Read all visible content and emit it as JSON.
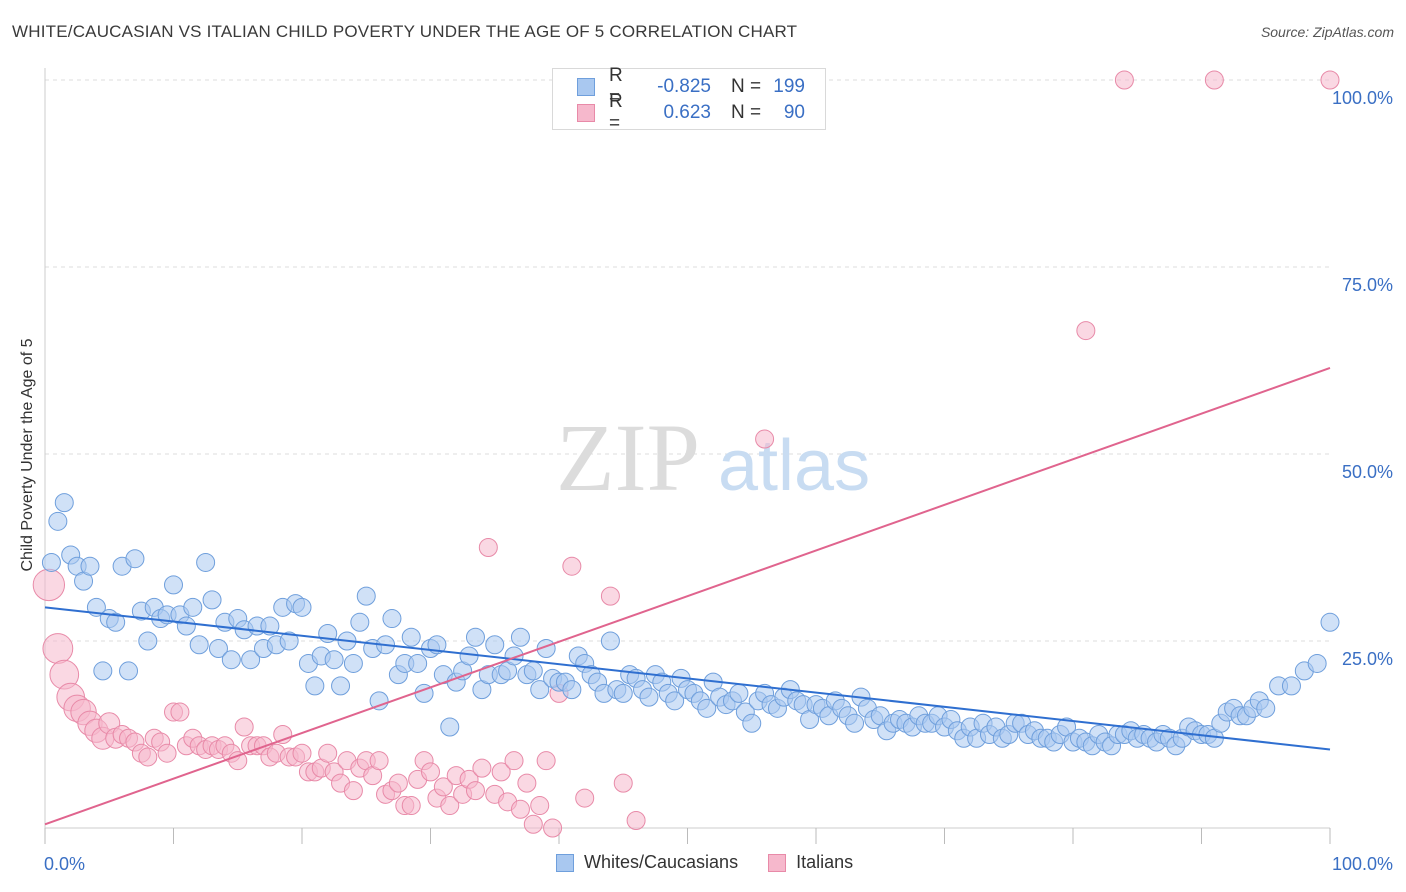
{
  "header": {
    "title": "WHITE/CAUCASIAN VS ITALIAN CHILD POVERTY UNDER THE AGE OF 5 CORRELATION CHART",
    "source": "Source: ZipAtlas.com"
  },
  "legend": {
    "rows": [
      {
        "r_label": "R =",
        "r_value": "-0.825",
        "n_label": "N =",
        "n_value": "199"
      },
      {
        "r_label": "R =",
        "r_value": "0.623",
        "n_label": "N =",
        "n_value": "90"
      }
    ]
  },
  "watermark": {
    "zip": "ZIP",
    "atlas": "atlas"
  },
  "colors": {
    "blue_fill": "#a9c8f0",
    "blue_stroke": "#6f9fdc",
    "blue_line": "#2f6fd0",
    "pink_fill": "#f6b8cc",
    "pink_stroke": "#e88aa8",
    "pink_line": "#e0648e",
    "axis_label": "#3a6fc4",
    "grid": "#dddddd"
  },
  "chart_data": {
    "type": "scatter",
    "title": "WHITE/CAUCASIAN VS ITALIAN CHILD POVERTY UNDER THE AGE OF 5 CORRELATION CHART",
    "xlabel": "",
    "ylabel": "Child Poverty Under the Age of 5",
    "xlim": [
      0,
      100
    ],
    "ylim": [
      0,
      100
    ],
    "x_tick_labels": [
      "0.0%",
      "100.0%"
    ],
    "y_tick_labels": [
      "25.0%",
      "50.0%",
      "75.0%",
      "100.0%"
    ],
    "y_ticks": [
      25,
      50,
      75,
      100
    ],
    "grid": true,
    "series": [
      {
        "name": "Whites/Caucasians",
        "r": -0.825,
        "n": 199,
        "trend": {
          "x": [
            0,
            100
          ],
          "y": [
            29.5,
            10.5
          ]
        },
        "points": [
          [
            0.5,
            35.5
          ],
          [
            1,
            41
          ],
          [
            1.5,
            43.5
          ],
          [
            2,
            36.5
          ],
          [
            2.5,
            35
          ],
          [
            3,
            33
          ],
          [
            3.5,
            35
          ],
          [
            4,
            29.5
          ],
          [
            4.5,
            21
          ],
          [
            5,
            28
          ],
          [
            5.5,
            27.5
          ],
          [
            6,
            35
          ],
          [
            6.5,
            21
          ],
          [
            7,
            36
          ],
          [
            7.5,
            29
          ],
          [
            8,
            25
          ],
          [
            8.5,
            29.5
          ],
          [
            9,
            28
          ],
          [
            9.5,
            28.5
          ],
          [
            10,
            32.5
          ],
          [
            10.5,
            28.5
          ],
          [
            11,
            27
          ],
          [
            11.5,
            29.5
          ],
          [
            12,
            24.5
          ],
          [
            12.5,
            35.5
          ],
          [
            13,
            30.5
          ],
          [
            13.5,
            24
          ],
          [
            14,
            27.5
          ],
          [
            14.5,
            22.5
          ],
          [
            15,
            28
          ],
          [
            15.5,
            26.5
          ],
          [
            16,
            22.5
          ],
          [
            16.5,
            27
          ],
          [
            17,
            24
          ],
          [
            17.5,
            27
          ],
          [
            18,
            24.5
          ],
          [
            18.5,
            29.5
          ],
          [
            19,
            25
          ],
          [
            19.5,
            30
          ],
          [
            20,
            29.5
          ],
          [
            20.5,
            22
          ],
          [
            21,
            19
          ],
          [
            21.5,
            23
          ],
          [
            22,
            26
          ],
          [
            22.5,
            22.5
          ],
          [
            23,
            19
          ],
          [
            23.5,
            25
          ],
          [
            24,
            22
          ],
          [
            24.5,
            27.5
          ],
          [
            25,
            31
          ],
          [
            25.5,
            24
          ],
          [
            26,
            17
          ],
          [
            26.5,
            24.5
          ],
          [
            27,
            28
          ],
          [
            27.5,
            20.5
          ],
          [
            28,
            22
          ],
          [
            28.5,
            25.5
          ],
          [
            29,
            22
          ],
          [
            29.5,
            18
          ],
          [
            30,
            24
          ],
          [
            30.5,
            24.5
          ],
          [
            31,
            20.5
          ],
          [
            31.5,
            13.5
          ],
          [
            32,
            19.5
          ],
          [
            32.5,
            21
          ],
          [
            33,
            23
          ],
          [
            33.5,
            25.5
          ],
          [
            34,
            18.5
          ],
          [
            34.5,
            20.5
          ],
          [
            35,
            24.5
          ],
          [
            35.5,
            20.5
          ],
          [
            36,
            21
          ],
          [
            36.5,
            23
          ],
          [
            37,
            25.5
          ],
          [
            37.5,
            20.5
          ],
          [
            38,
            21
          ],
          [
            38.5,
            18.5
          ],
          [
            39,
            24
          ],
          [
            39.5,
            20
          ],
          [
            40,
            19.5
          ],
          [
            40.5,
            19.5
          ],
          [
            41,
            18.5
          ],
          [
            41.5,
            23
          ],
          [
            42,
            22
          ],
          [
            42.5,
            20.5
          ],
          [
            43,
            19.5
          ],
          [
            43.5,
            18
          ],
          [
            44,
            25
          ],
          [
            44.5,
            18.5
          ],
          [
            45,
            18
          ],
          [
            45.5,
            20.5
          ],
          [
            46,
            20
          ],
          [
            46.5,
            18.5
          ],
          [
            47,
            17.5
          ],
          [
            47.5,
            20.5
          ],
          [
            48,
            19.5
          ],
          [
            48.5,
            18
          ],
          [
            49,
            17
          ],
          [
            49.5,
            20
          ],
          [
            50,
            18.5
          ],
          [
            50.5,
            18
          ],
          [
            51,
            17
          ],
          [
            51.5,
            16
          ],
          [
            52,
            19.5
          ],
          [
            52.5,
            17.5
          ],
          [
            53,
            16.5
          ],
          [
            53.5,
            17
          ],
          [
            54,
            18
          ],
          [
            54.5,
            15.5
          ],
          [
            55,
            14
          ],
          [
            55.5,
            17
          ],
          [
            56,
            18
          ],
          [
            56.5,
            16.5
          ],
          [
            57,
            16
          ],
          [
            57.5,
            17.5
          ],
          [
            58,
            18.5
          ],
          [
            58.5,
            17
          ],
          [
            59,
            16.5
          ],
          [
            59.5,
            14.5
          ],
          [
            60,
            16.5
          ],
          [
            60.5,
            16
          ],
          [
            61,
            15
          ],
          [
            61.5,
            17
          ],
          [
            62,
            16
          ],
          [
            62.5,
            15
          ],
          [
            63,
            14
          ],
          [
            63.5,
            17.5
          ],
          [
            64,
            16
          ],
          [
            64.5,
            14.5
          ],
          [
            65,
            15
          ],
          [
            65.5,
            13
          ],
          [
            66,
            14
          ],
          [
            66.5,
            14.5
          ],
          [
            67,
            14
          ],
          [
            67.5,
            13.5
          ],
          [
            68,
            15
          ],
          [
            68.5,
            14
          ],
          [
            69,
            14
          ],
          [
            69.5,
            15
          ],
          [
            70,
            13.5
          ],
          [
            70.5,
            14.5
          ],
          [
            71,
            13
          ],
          [
            71.5,
            12
          ],
          [
            72,
            13.5
          ],
          [
            72.5,
            12
          ],
          [
            73,
            14
          ],
          [
            73.5,
            12.5
          ],
          [
            74,
            13.5
          ],
          [
            74.5,
            12
          ],
          [
            75,
            12.5
          ],
          [
            75.5,
            14
          ],
          [
            76,
            14
          ],
          [
            76.5,
            12.5
          ],
          [
            77,
            13
          ],
          [
            77.5,
            12
          ],
          [
            78,
            12
          ],
          [
            78.5,
            11.5
          ],
          [
            79,
            12.5
          ],
          [
            79.5,
            13.5
          ],
          [
            80,
            11.5
          ],
          [
            80.5,
            12
          ],
          [
            81,
            11.5
          ],
          [
            81.5,
            11
          ],
          [
            82,
            12.5
          ],
          [
            82.5,
            11.5
          ],
          [
            83,
            11
          ],
          [
            83.5,
            12.5
          ],
          [
            84,
            12.5
          ],
          [
            84.5,
            13
          ],
          [
            85,
            12
          ],
          [
            85.5,
            12.5
          ],
          [
            86,
            12
          ],
          [
            86.5,
            11.5
          ],
          [
            87,
            12.5
          ],
          [
            87.5,
            12
          ],
          [
            88,
            11
          ],
          [
            88.5,
            12
          ],
          [
            89,
            13.5
          ],
          [
            89.5,
            13
          ],
          [
            90,
            12.5
          ],
          [
            90.5,
            12.5
          ],
          [
            91,
            12
          ],
          [
            91.5,
            14
          ],
          [
            92,
            15.5
          ],
          [
            92.5,
            16
          ],
          [
            93,
            15
          ],
          [
            93.5,
            15
          ],
          [
            94,
            16
          ],
          [
            94.5,
            17
          ],
          [
            95,
            16
          ],
          [
            96,
            19
          ],
          [
            97,
            19
          ],
          [
            98,
            21
          ],
          [
            99,
            22
          ],
          [
            100,
            27.5
          ]
        ]
      },
      {
        "name": "Italians",
        "r": 0.623,
        "n": 90,
        "trend": {
          "x": [
            0,
            100
          ],
          "y": [
            0.5,
            61.5
          ]
        },
        "points": [
          [
            0.3,
            32.5
          ],
          [
            1,
            24
          ],
          [
            1.5,
            20.5
          ],
          [
            2,
            17.5
          ],
          [
            2.5,
            16
          ],
          [
            3,
            15.5
          ],
          [
            3.5,
            14
          ],
          [
            4,
            13
          ],
          [
            4.5,
            12
          ],
          [
            5,
            14
          ],
          [
            5.5,
            12
          ],
          [
            6,
            12.5
          ],
          [
            6.5,
            12
          ],
          [
            7,
            11.5
          ],
          [
            7.5,
            10
          ],
          [
            8,
            9.5
          ],
          [
            8.5,
            12
          ],
          [
            9,
            11.5
          ],
          [
            9.5,
            10
          ],
          [
            10,
            15.5
          ],
          [
            10.5,
            15.5
          ],
          [
            11,
            11
          ],
          [
            11.5,
            12
          ],
          [
            12,
            11
          ],
          [
            12.5,
            10.5
          ],
          [
            13,
            11
          ],
          [
            13.5,
            10.5
          ],
          [
            14,
            11
          ],
          [
            14.5,
            10
          ],
          [
            15,
            9
          ],
          [
            15.5,
            13.5
          ],
          [
            16,
            11
          ],
          [
            16.5,
            11
          ],
          [
            17,
            11
          ],
          [
            17.5,
            9.5
          ],
          [
            18,
            10
          ],
          [
            18.5,
            12.5
          ],
          [
            19,
            9.5
          ],
          [
            19.5,
            9.5
          ],
          [
            20,
            10
          ],
          [
            20.5,
            7.5
          ],
          [
            21,
            7.5
          ],
          [
            21.5,
            8
          ],
          [
            22,
            10
          ],
          [
            22.5,
            7.5
          ],
          [
            23,
            6
          ],
          [
            23.5,
            9
          ],
          [
            24,
            5
          ],
          [
            24.5,
            8
          ],
          [
            25,
            9
          ],
          [
            25.5,
            7
          ],
          [
            26,
            9
          ],
          [
            26.5,
            4.5
          ],
          [
            27,
            5
          ],
          [
            27.5,
            6
          ],
          [
            28,
            3
          ],
          [
            28.5,
            3
          ],
          [
            29,
            6.5
          ],
          [
            29.5,
            9
          ],
          [
            30,
            7.5
          ],
          [
            30.5,
            4
          ],
          [
            31,
            5.5
          ],
          [
            31.5,
            3
          ],
          [
            32,
            7
          ],
          [
            32.5,
            4.5
          ],
          [
            33,
            6.5
          ],
          [
            33.5,
            5
          ],
          [
            34,
            8
          ],
          [
            34.5,
            37.5
          ],
          [
            35,
            4.5
          ],
          [
            35.5,
            7.5
          ],
          [
            36,
            3.5
          ],
          [
            36.5,
            9
          ],
          [
            37,
            2.5
          ],
          [
            37.5,
            6
          ],
          [
            38,
            0.5
          ],
          [
            38.5,
            3
          ],
          [
            39,
            9
          ],
          [
            39.5,
            0
          ],
          [
            40,
            18
          ],
          [
            41,
            35
          ],
          [
            42,
            4
          ],
          [
            44,
            31
          ],
          [
            45,
            6
          ],
          [
            46,
            1
          ],
          [
            56,
            52
          ],
          [
            81,
            66.5
          ],
          [
            84,
            100
          ],
          [
            91,
            100
          ],
          [
            100,
            100
          ]
        ]
      }
    ]
  },
  "bottom_legend": [
    "Whites/Caucasians",
    "Italians"
  ]
}
